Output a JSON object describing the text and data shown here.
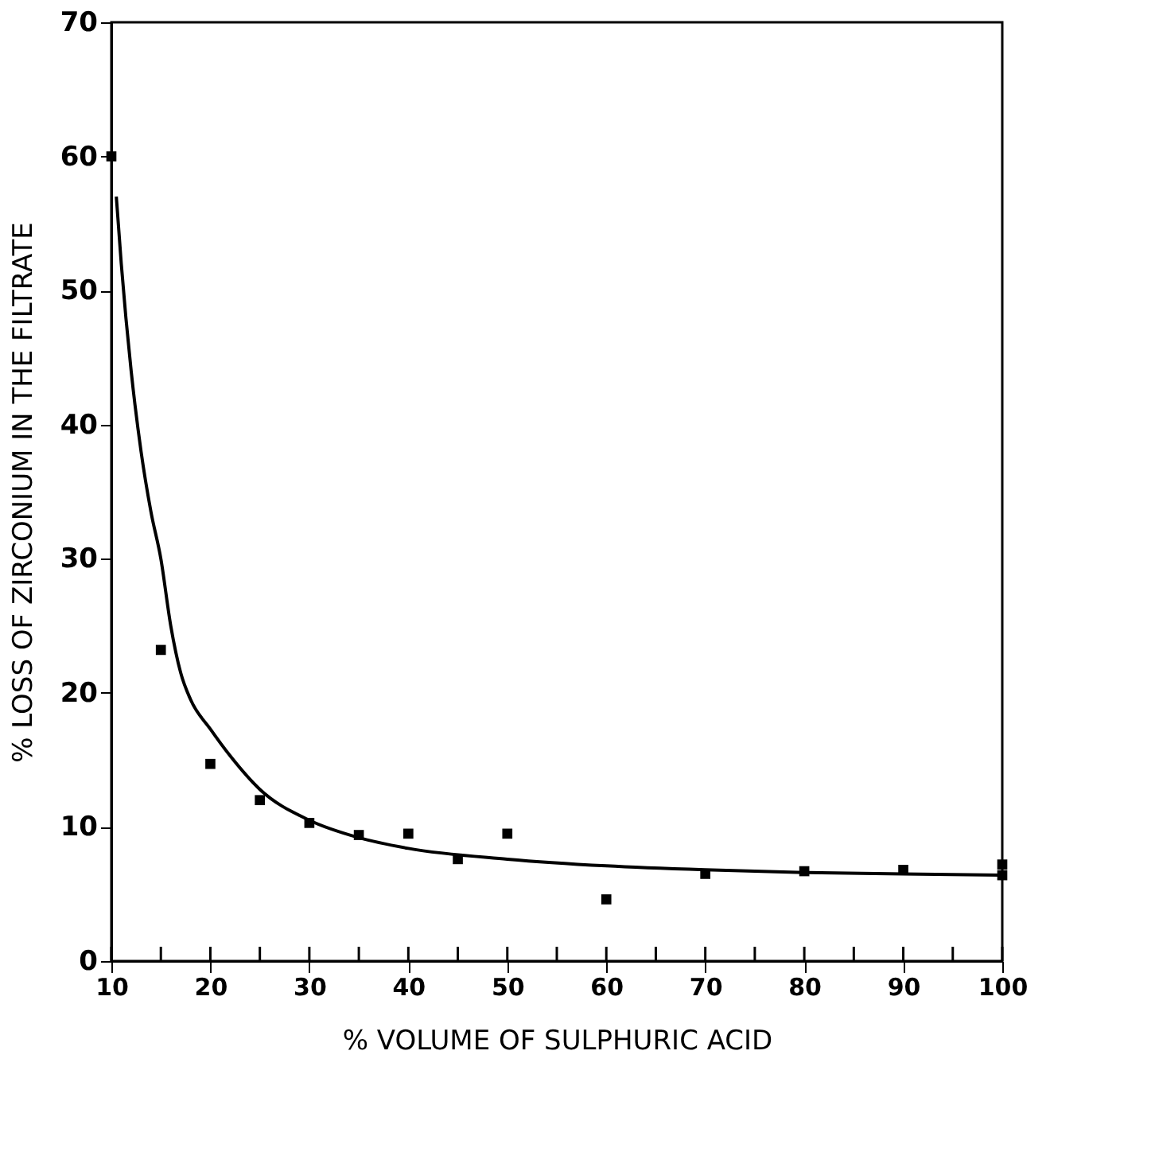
{
  "chart_data": {
    "type": "scatter",
    "xlabel": "% VOLUME OF SULPHURIC ACID",
    "ylabel": "% LOSS OF ZIRCONIUM IN THE FILTRATE",
    "series": [
      {
        "color": "#000000",
        "marker": "square",
        "x": [
          10,
          15,
          20,
          25,
          30,
          35,
          40,
          45,
          50,
          60,
          70,
          80,
          90,
          100,
          100
        ],
        "values": [
          60,
          23.2,
          14.7,
          12.0,
          10.3,
          9.4,
          9.5,
          7.6,
          9.5,
          4.6,
          6.5,
          6.7,
          6.8,
          7.2,
          6.4
        ]
      },
      {
        "type": "line",
        "color": "#000000",
        "marker": "none",
        "line_style": "solid",
        "x": [
          10.5,
          11,
          12,
          13,
          14,
          15,
          16,
          17,
          18,
          20,
          22,
          25,
          30,
          35,
          40,
          50,
          60,
          70,
          80,
          90,
          100
        ],
        "values": [
          57,
          52,
          44,
          38,
          33.5,
          30,
          25,
          21.5,
          19.5,
          17.3,
          15.3,
          12.8,
          10.5,
          9.2,
          8.4,
          7.6,
          7.1,
          6.8,
          6.6,
          6.5,
          6.4
        ]
      }
    ],
    "xlim": [
      10,
      100
    ],
    "ylim": [
      0,
      70
    ],
    "xticks": [
      10,
      {
        "value": 15,
        "label": null
      },
      20,
      {
        "value": 25,
        "label": null
      },
      30,
      {
        "value": 35,
        "label": null
      },
      40,
      {
        "value": 45,
        "label": null
      },
      50,
      {
        "value": 55,
        "label": null
      },
      60,
      {
        "value": 65,
        "label": null
      },
      70,
      {
        "value": 75,
        "label": null
      },
      80,
      {
        "value": 85,
        "label": null
      },
      90,
      {
        "value": 95,
        "label": null
      },
      100
    ],
    "yticks": [
      0,
      10,
      20,
      30,
      40,
      50,
      60,
      70
    ],
    "grid": false
  }
}
